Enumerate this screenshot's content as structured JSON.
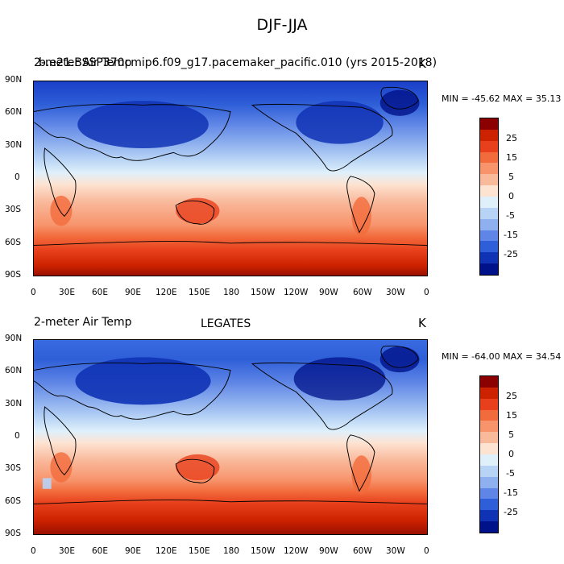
{
  "figure_title": "DJF-JJA",
  "panels": [
    {
      "left_title": "2-meter Air Temp",
      "overlap_title": "b.e21.BSSP370cmip6.f09_g17.pacemaker_pacific.010 (yrs 2015-2018)",
      "center_title": "",
      "units": "K",
      "min_max": "MIN = -45.62 MAX =  35.13"
    },
    {
      "left_title": "2-meter Air Temp",
      "overlap_title": "",
      "center_title": "LEGATES",
      "units": "K",
      "min_max": "MIN = -64.00 MAX =  34.54"
    }
  ],
  "lat_ticks": [
    "90N",
    "60N",
    "30N",
    "0",
    "30S",
    "60S",
    "90S"
  ],
  "lon_ticks": [
    "0",
    "30E",
    "60E",
    "90E",
    "120E",
    "150E",
    "180",
    "150W",
    "120W",
    "90W",
    "60W",
    "30W",
    "0"
  ],
  "colorbar": {
    "labels": [
      "25",
      "15",
      "5",
      "0",
      "-5",
      "-15",
      "-25"
    ],
    "colors": [
      "#8b0000",
      "#cc2200",
      "#e8401c",
      "#f26b3c",
      "#f7946c",
      "#f9b99b",
      "#fde3d2",
      "#dff0fb",
      "#b7d3f5",
      "#8eb0ee",
      "#5f86e6",
      "#2f5fd8",
      "#1033b5",
      "#00128a"
    ]
  }
}
